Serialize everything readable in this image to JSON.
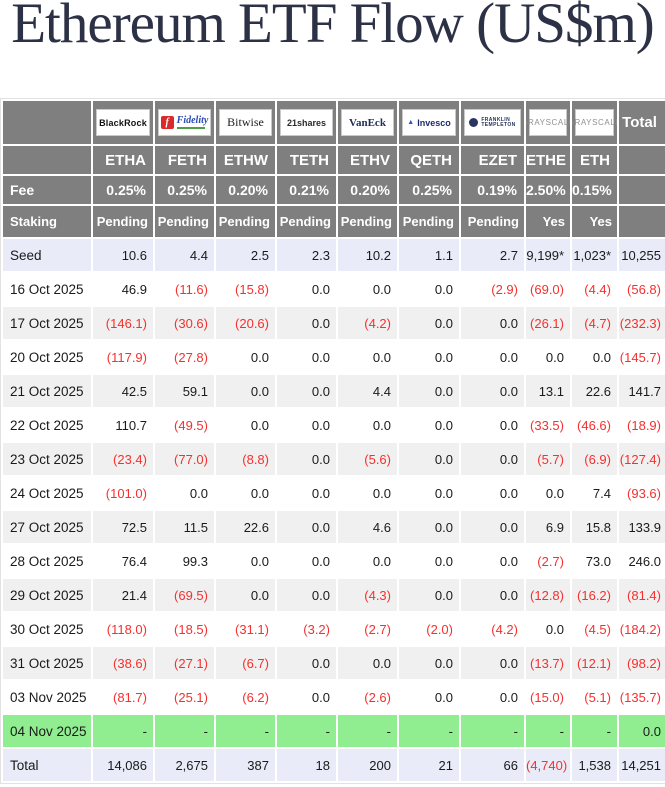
{
  "page": {
    "title": "Ethereum ETF Flow (US$m)"
  },
  "colors": {
    "title": "#2c3145",
    "header_bg": "#7f7f7f",
    "negative": "#f5302e",
    "stripe": "#f0f0f0",
    "seed_total_row": "#e9ecf8",
    "highlight_row": "#90ee90"
  },
  "table": {
    "total_label": "Total",
    "fee_label": "Fee",
    "staking_label": "Staking",
    "funds": [
      {
        "ticker": "ETHA",
        "issuer": "BlackRock",
        "logo": "blackrock",
        "logo_text": "BlackRock",
        "fee": "0.25%",
        "staking": "Pending"
      },
      {
        "ticker": "FETH",
        "issuer": "Fidelity",
        "logo": "fidelity",
        "logo_text": "Fidelity",
        "icon_text": "f",
        "fee": "0.25%",
        "staking": "Pending"
      },
      {
        "ticker": "ETHW",
        "issuer": "Bitwise",
        "logo": "bitwise",
        "logo_text": "Bitwise",
        "fee": "0.20%",
        "staking": "Pending"
      },
      {
        "ticker": "TETH",
        "issuer": "21Shares",
        "logo": "shares21",
        "logo_text": "21shares",
        "fee": "0.21%",
        "staking": "Pending"
      },
      {
        "ticker": "ETHV",
        "issuer": "VanEck",
        "logo": "vaneck",
        "logo_text": "VanEck",
        "fee": "0.20%",
        "staking": "Pending"
      },
      {
        "ticker": "QETH",
        "issuer": "Invesco",
        "logo": "invesco",
        "logo_text": "Invesco",
        "icon_text": "▲",
        "fee": "0.25%",
        "staking": "Pending"
      },
      {
        "ticker": "EZET",
        "issuer": "Franklin Templeton",
        "logo": "franklin",
        "logo_text_line1": "FRANKLIN",
        "logo_text_line2": "TEMPLETON",
        "fee": "0.19%",
        "staking": "Pending"
      },
      {
        "ticker": "ETHE",
        "issuer": "Grayscale",
        "logo": "grayscale",
        "logo_text": "GRAYSCALE",
        "fee": "2.50%",
        "staking": "Yes"
      },
      {
        "ticker": "ETH",
        "issuer": "Grayscale",
        "logo": "grayscale",
        "logo_text": "GRAYSCALE",
        "fee": "0.15%",
        "staking": "Yes"
      }
    ],
    "rows": [
      {
        "label": "Seed",
        "style": "seed",
        "values": [
          "10.6",
          "4.4",
          "2.5",
          "2.3",
          "10.2",
          "1.1",
          "2.7",
          "9,199*",
          "1,023*",
          "10,255"
        ]
      },
      {
        "label": "16 Oct 2025",
        "values": [
          "46.9",
          "(11.6)",
          "(15.8)",
          "0.0",
          "0.0",
          "0.0",
          "(2.9)",
          "(69.0)",
          "(4.4)",
          "(56.8)"
        ]
      },
      {
        "label": "17 Oct 2025",
        "values": [
          "(146.1)",
          "(30.6)",
          "(20.6)",
          "0.0",
          "(4.2)",
          "0.0",
          "0.0",
          "(26.1)",
          "(4.7)",
          "(232.3)"
        ]
      },
      {
        "label": "20 Oct 2025",
        "values": [
          "(117.9)",
          "(27.8)",
          "0.0",
          "0.0",
          "0.0",
          "0.0",
          "0.0",
          "0.0",
          "0.0",
          "(145.7)"
        ]
      },
      {
        "label": "21 Oct 2025",
        "values": [
          "42.5",
          "59.1",
          "0.0",
          "0.0",
          "4.4",
          "0.0",
          "0.0",
          "13.1",
          "22.6",
          "141.7"
        ]
      },
      {
        "label": "22 Oct 2025",
        "values": [
          "110.7",
          "(49.5)",
          "0.0",
          "0.0",
          "0.0",
          "0.0",
          "0.0",
          "(33.5)",
          "(46.6)",
          "(18.9)"
        ]
      },
      {
        "label": "23 Oct 2025",
        "values": [
          "(23.4)",
          "(77.0)",
          "(8.8)",
          "0.0",
          "(5.6)",
          "0.0",
          "0.0",
          "(5.7)",
          "(6.9)",
          "(127.4)"
        ]
      },
      {
        "label": "24 Oct 2025",
        "values": [
          "(101.0)",
          "0.0",
          "0.0",
          "0.0",
          "0.0",
          "0.0",
          "0.0",
          "0.0",
          "7.4",
          "(93.6)"
        ]
      },
      {
        "label": "27 Oct 2025",
        "values": [
          "72.5",
          "11.5",
          "22.6",
          "0.0",
          "4.6",
          "0.0",
          "0.0",
          "6.9",
          "15.8",
          "133.9"
        ]
      },
      {
        "label": "28 Oct 2025",
        "values": [
          "76.4",
          "99.3",
          "0.0",
          "0.0",
          "0.0",
          "0.0",
          "0.0",
          "(2.7)",
          "73.0",
          "246.0"
        ]
      },
      {
        "label": "29 Oct 2025",
        "values": [
          "21.4",
          "(69.5)",
          "0.0",
          "0.0",
          "(4.3)",
          "0.0",
          "0.0",
          "(12.8)",
          "(16.2)",
          "(81.4)"
        ]
      },
      {
        "label": "30 Oct 2025",
        "values": [
          "(118.0)",
          "(18.5)",
          "(31.1)",
          "(3.2)",
          "(2.7)",
          "(2.0)",
          "(4.2)",
          "0.0",
          "(4.5)",
          "(184.2)"
        ]
      },
      {
        "label": "31 Oct 2025",
        "values": [
          "(38.6)",
          "(27.1)",
          "(6.7)",
          "0.0",
          "0.0",
          "0.0",
          "0.0",
          "(13.7)",
          "(12.1)",
          "(98.2)"
        ]
      },
      {
        "label": "03 Nov 2025",
        "values": [
          "(81.7)",
          "(25.1)",
          "(6.2)",
          "0.0",
          "(2.6)",
          "0.0",
          "0.0",
          "(15.0)",
          "(5.1)",
          "(135.7)"
        ]
      },
      {
        "label": "04 Nov 2025",
        "style": "highlight",
        "values": [
          "-",
          "-",
          "-",
          "-",
          "-",
          "-",
          "-",
          "-",
          "-",
          "0.0"
        ]
      },
      {
        "label": "Total",
        "style": "total",
        "values": [
          "14,086",
          "2,675",
          "387",
          "18",
          "200",
          "21",
          "66",
          "(4,740)",
          "1,538",
          "14,251"
        ]
      }
    ]
  }
}
